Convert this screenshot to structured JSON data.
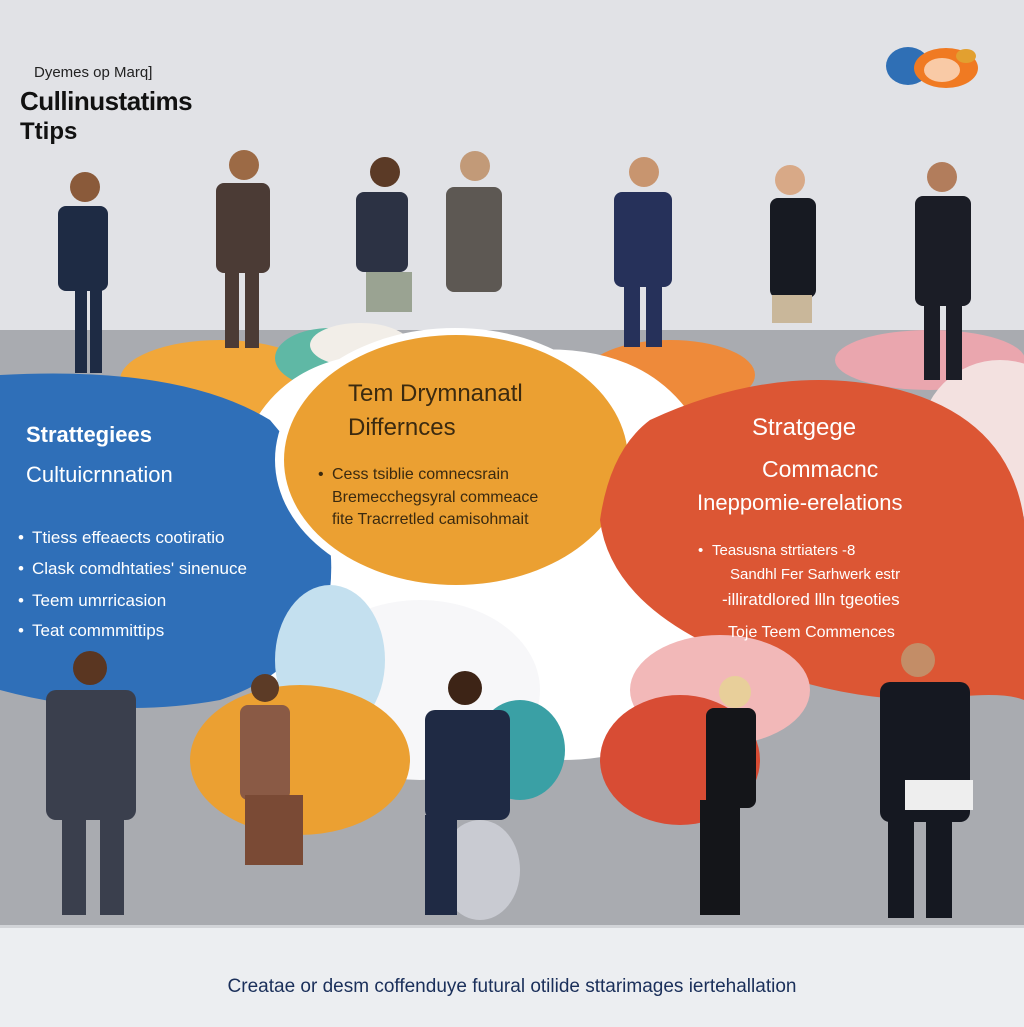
{
  "header": {
    "kicker": "Dyemes op Marq]",
    "title_line1": "Cullinustatims",
    "title_line2": "Ttips"
  },
  "logo": {
    "name": "globe-logo-icon",
    "colors": [
      "#2f6fb5",
      "#f07a22"
    ]
  },
  "left_panel": {
    "heading": "Strattegiees",
    "subheading": "Cultuicrnnation",
    "bullets": [
      "Ttiess effeaects cootiratio",
      "Clask comdhtaties' sinenuce",
      "Teem umrricasion",
      "Teat commmittips"
    ],
    "color": "#2f6fb8"
  },
  "center_panel": {
    "heading_line1": "Tem Drymnanatl",
    "heading_line2": "Differnces",
    "bullets": [
      "Cess tsiblie comnecsrain",
      "Bremecchegsyral commeace",
      "fite Tracrretled camisohmait"
    ],
    "color": "#eba032"
  },
  "right_panel": {
    "heading_line1": "Stratgege",
    "heading_line2": "Commacnc",
    "heading_line3": "Ineppomie-erelations",
    "bullets": [
      "Teasusna strtiaters -8",
      "Sandhl Fer Sarhwerk estr",
      "-illiratdlored llln tgeoties",
      "Toje Teem Commences"
    ],
    "color": "#dc5634"
  },
  "footer": {
    "caption": "Creatae or desm coffenduye futural otilide sttarimages iertehallation"
  }
}
